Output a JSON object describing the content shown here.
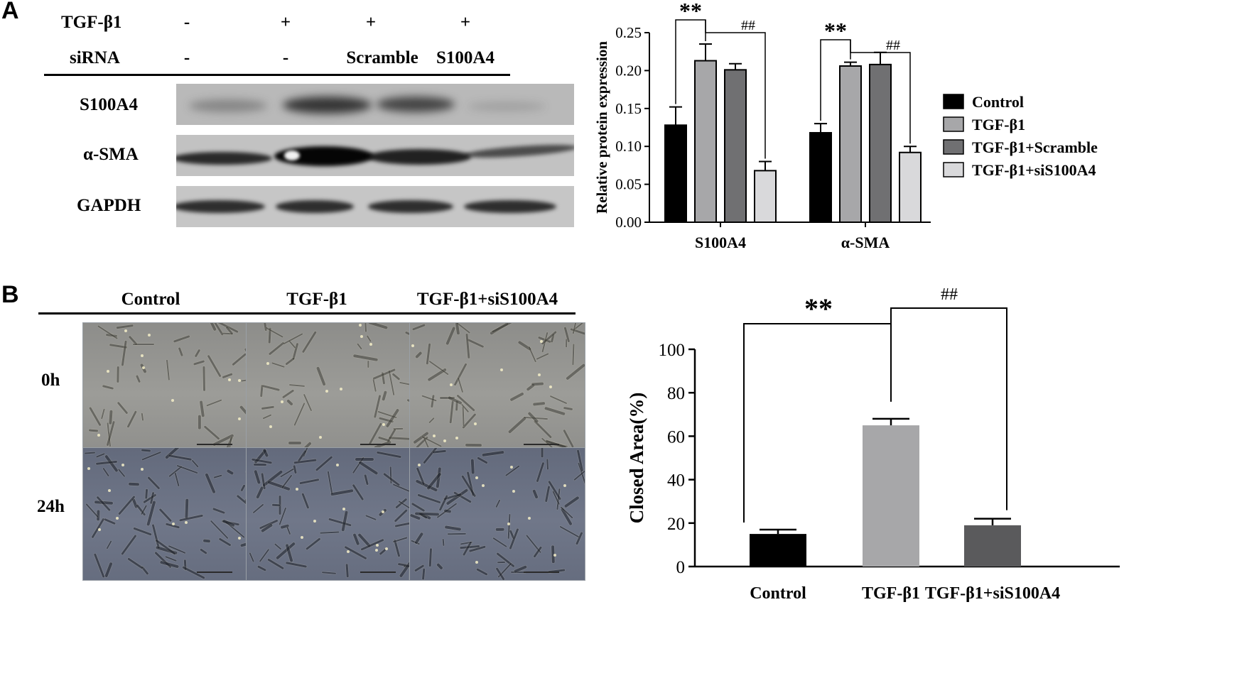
{
  "panelA": {
    "letter": "A",
    "rows": [
      {
        "label": "TGF-β1",
        "values": [
          "-",
          "+",
          "+",
          "+"
        ]
      },
      {
        "label": "siRNA",
        "values": [
          "-",
          "-",
          "Scramble",
          "S100A4"
        ]
      }
    ],
    "blots": [
      {
        "label": "S100A4",
        "band_intensity": [
          0.35,
          0.85,
          0.75,
          0.15
        ]
      },
      {
        "label": "α-SMA",
        "band_intensity": [
          0.85,
          1.0,
          0.9,
          0.65
        ]
      },
      {
        "label": "GAPDH",
        "band_intensity": [
          0.9,
          0.9,
          0.9,
          0.9
        ]
      }
    ]
  },
  "panelB": {
    "letter": "B",
    "columns": [
      "Control",
      "TGF-β1",
      "TGF-β1+siS100A4"
    ],
    "rows": [
      "0h",
      "24h"
    ]
  },
  "chart_data": [
    {
      "type": "bar",
      "ylabel": "Relative protein expression",
      "ylim": [
        0,
        0.25
      ],
      "yticks": [
        "0.00",
        "0.05",
        "0.10",
        "0.15",
        "0.20",
        "0.25"
      ],
      "categories": [
        "S100A4",
        "α-SMA"
      ],
      "series": [
        {
          "name": "Control",
          "color": "#000000",
          "values": [
            0.128,
            0.118
          ],
          "errors": [
            0.024,
            0.012
          ]
        },
        {
          "name": "TGF-β1",
          "color": "#a7a7a9",
          "values": [
            0.213,
            0.206
          ],
          "errors": [
            0.022,
            0.005
          ]
        },
        {
          "name": "TGF-β1+Scramble",
          "color": "#707072",
          "values": [
            0.201,
            0.208
          ],
          "errors": [
            0.008,
            0.016
          ]
        },
        {
          "name": "TGF-β1+siS100A4",
          "color": "#d9d9db",
          "values": [
            0.068,
            0.092
          ],
          "errors": [
            0.012,
            0.008
          ]
        }
      ],
      "legend": "right",
      "annotations": [
        "**",
        "##",
        "**",
        "##"
      ]
    },
    {
      "type": "bar",
      "ylabel": "Closed Area(%)",
      "ylim": [
        0,
        100
      ],
      "yticks": [
        "0",
        "20",
        "40",
        "60",
        "80",
        "100"
      ],
      "categories": [
        "Control",
        "TGF-β1",
        "TGF-β1+siS100A4"
      ],
      "values": [
        15,
        65,
        19
      ],
      "errors": [
        2,
        3,
        3
      ],
      "colors": [
        "#000000",
        "#a7a7a9",
        "#5a5a5c"
      ],
      "annotations": [
        "**",
        "##"
      ]
    }
  ]
}
